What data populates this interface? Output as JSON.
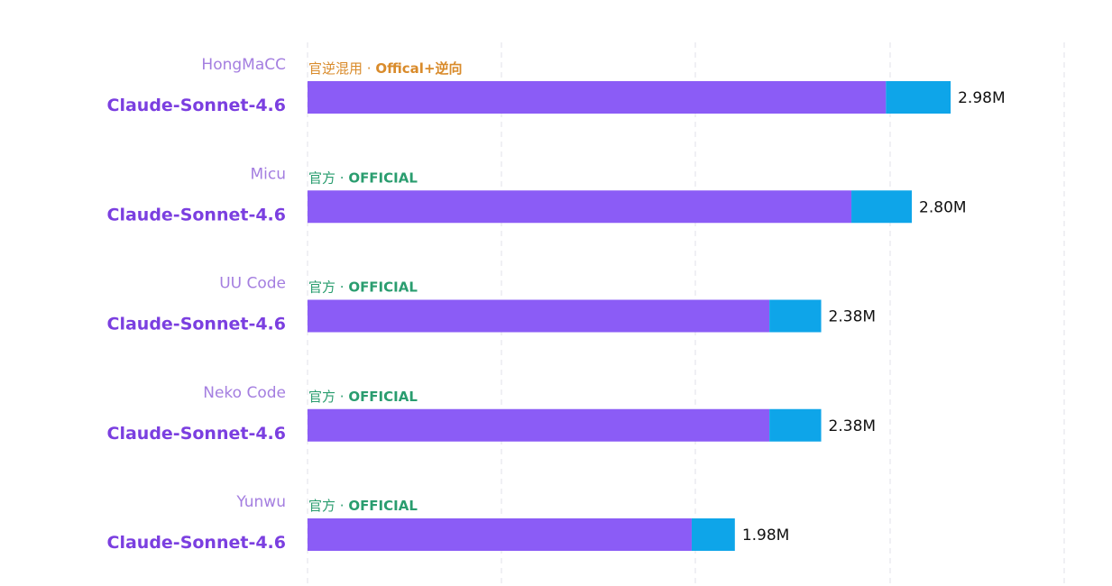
{
  "chart_data": {
    "type": "bar",
    "orientation": "horizontal",
    "stacked": true,
    "xlim": [
      0,
      3.9
    ],
    "grid": true,
    "colors": {
      "primary": "#8b5cf6",
      "secondary": "#0ea5e9",
      "tag_mixed": "#d98b2b",
      "tag_official": "#2a9d6f"
    },
    "categories": [
      {
        "provider": "HongMaCC",
        "model": "Claude-Sonnet-4.6",
        "tag_cn": "官逆混用 · ",
        "tag_en": "Offical+逆向",
        "tag_type": "mixed",
        "total": 2.98,
        "primary": 2.68,
        "value_label": "2.98M"
      },
      {
        "provider": "Micu",
        "model": "Claude-Sonnet-4.6",
        "tag_cn": "官方 · ",
        "tag_en": "OFFICIAL",
        "tag_type": "official",
        "total": 2.8,
        "primary": 2.52,
        "value_label": "2.80M"
      },
      {
        "provider": "UU Code",
        "model": "Claude-Sonnet-4.6",
        "tag_cn": "官方 · ",
        "tag_en": "OFFICIAL",
        "tag_type": "official",
        "total": 2.38,
        "primary": 2.14,
        "value_label": "2.38M"
      },
      {
        "provider": "Neko Code",
        "model": "Claude-Sonnet-4.6",
        "tag_cn": "官方 · ",
        "tag_en": "OFFICIAL",
        "tag_type": "official",
        "total": 2.38,
        "primary": 2.14,
        "value_label": "2.38M"
      },
      {
        "provider": "Yunwu",
        "model": "Claude-Sonnet-4.6",
        "tag_cn": "官方 · ",
        "tag_en": "OFFICIAL",
        "tag_type": "official",
        "total": 1.98,
        "primary": 1.78,
        "value_label": "1.98M"
      }
    ]
  }
}
